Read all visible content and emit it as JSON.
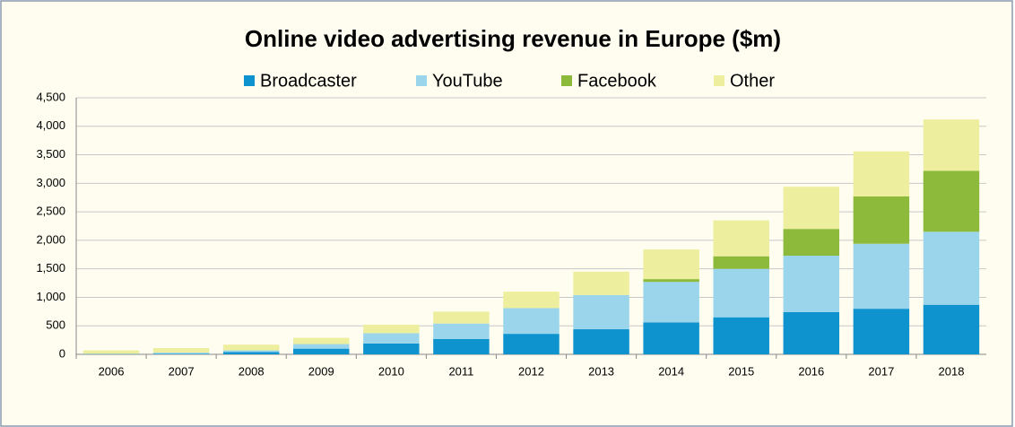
{
  "chart_data": {
    "type": "stacked-bar",
    "title": "Online video advertising revenue in Europe ($m)",
    "categories": [
      "2006",
      "2007",
      "2008",
      "2009",
      "2010",
      "2011",
      "2012",
      "2013",
      "2014",
      "2015",
      "2016",
      "2017",
      "2018"
    ],
    "series": [
      {
        "name": "Broadcaster",
        "color": "#0e93cf",
        "values": [
          5,
          10,
          40,
          100,
          190,
          270,
          360,
          440,
          560,
          650,
          740,
          800,
          870
        ]
      },
      {
        "name": "YouTube",
        "color": "#9ad5ec",
        "values": [
          5,
          20,
          30,
          80,
          180,
          270,
          450,
          600,
          710,
          850,
          990,
          1140,
          1280
        ]
      },
      {
        "name": "Facebook",
        "color": "#8dba3b",
        "values": [
          0,
          0,
          0,
          0,
          0,
          0,
          0,
          0,
          50,
          220,
          470,
          830,
          1070
        ]
      },
      {
        "name": "Other",
        "color": "#eeee9f",
        "values": [
          60,
          80,
          100,
          110,
          150,
          210,
          290,
          410,
          520,
          630,
          740,
          790,
          900
        ]
      }
    ],
    "ylim": [
      0,
      4500
    ],
    "yticks": [
      0,
      500,
      {
        "value": 1000,
        "label": "1,000"
      },
      {
        "value": 1500,
        "label": "1,500"
      },
      {
        "value": 2000,
        "label": "2,000"
      },
      {
        "value": 2500,
        "label": "2,500"
      },
      {
        "value": 3000,
        "label": "3,000"
      },
      {
        "value": 3500,
        "label": "3,500"
      },
      {
        "value": 4000,
        "label": "4,000"
      },
      {
        "value": 4500,
        "label": "4,500"
      }
    ],
    "grid": true
  }
}
